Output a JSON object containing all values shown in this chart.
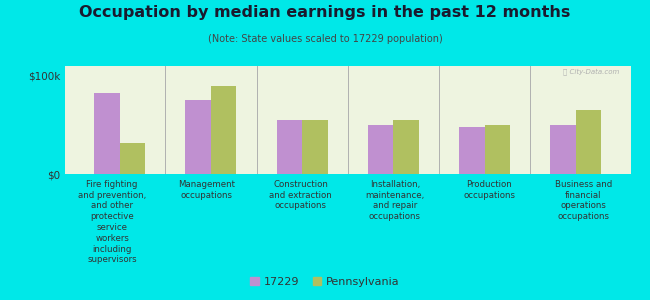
{
  "title": "Occupation by median earnings in the past 12 months",
  "subtitle": "(Note: State values scaled to 17229 population)",
  "background_color": "#00e8e8",
  "plot_bg_color": "#eef4e0",
  "categories": [
    "Fire fighting\nand prevention,\nand other\nprotective\nservice\nworkers\nincluding\nsupervisors",
    "Management\noccupations",
    "Construction\nand extraction\noccupations",
    "Installation,\nmaintenance,\nand repair\noccupations",
    "Production\noccupations",
    "Business and\nfinancial\noperations\noccupations"
  ],
  "values_17229": [
    82000,
    75000,
    55000,
    50000,
    48000,
    50000
  ],
  "values_pa": [
    32000,
    90000,
    55000,
    55000,
    50000,
    65000
  ],
  "color_17229": "#c090d0",
  "color_pa": "#b0c060",
  "ylim": [
    0,
    110000
  ],
  "yticks": [
    0,
    100000
  ],
  "ytick_labels": [
    "$0",
    "$100k"
  ],
  "legend_17229": "17229",
  "legend_pa": "Pennsylvania",
  "bar_width": 0.28,
  "watermark": "Ⓡ City-Data.com",
  "title_color": "#1a1a2e",
  "subtitle_color": "#444444",
  "label_color": "#333333"
}
